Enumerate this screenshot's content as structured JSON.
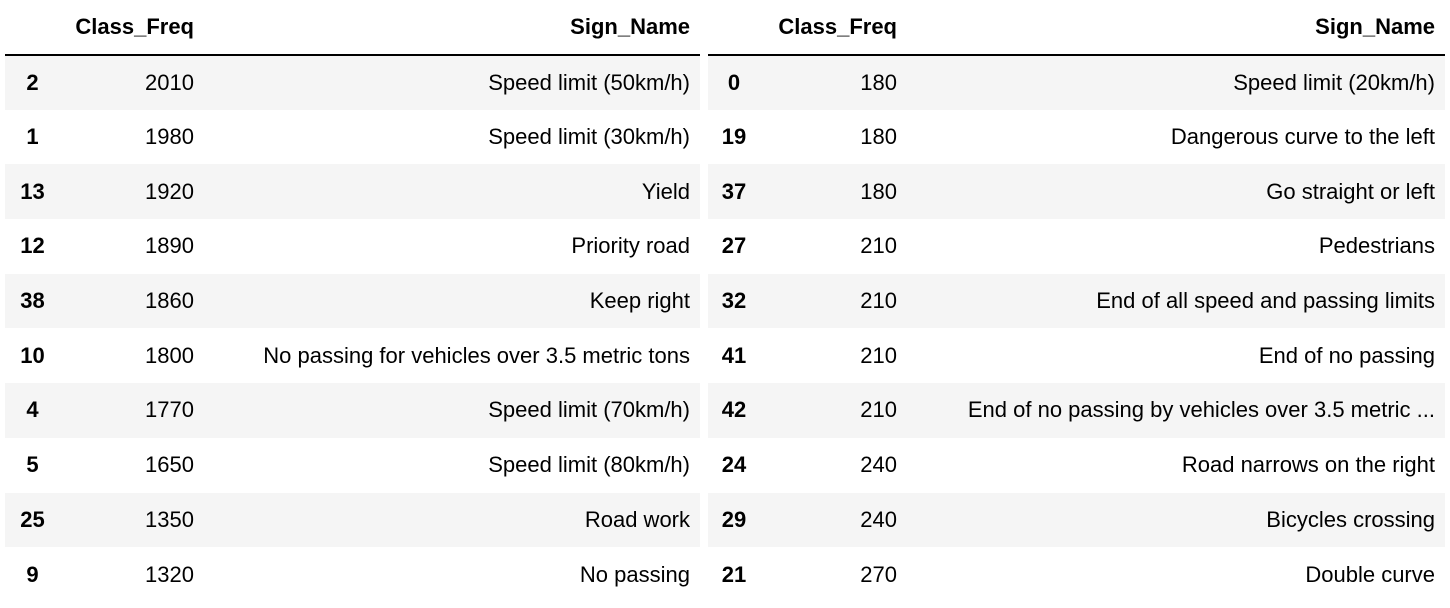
{
  "columns": {
    "index": "",
    "class_freq": "Class_Freq",
    "sign_name": "Sign_Name"
  },
  "left_table": {
    "rows": [
      {
        "index": "2",
        "class_freq": "2010",
        "sign_name": "Speed limit (50km/h)"
      },
      {
        "index": "1",
        "class_freq": "1980",
        "sign_name": "Speed limit (30km/h)"
      },
      {
        "index": "13",
        "class_freq": "1920",
        "sign_name": "Yield"
      },
      {
        "index": "12",
        "class_freq": "1890",
        "sign_name": "Priority road"
      },
      {
        "index": "38",
        "class_freq": "1860",
        "sign_name": "Keep right"
      },
      {
        "index": "10",
        "class_freq": "1800",
        "sign_name": "No passing for vehicles over 3.5 metric tons"
      },
      {
        "index": "4",
        "class_freq": "1770",
        "sign_name": "Speed limit (70km/h)"
      },
      {
        "index": "5",
        "class_freq": "1650",
        "sign_name": "Speed limit (80km/h)"
      },
      {
        "index": "25",
        "class_freq": "1350",
        "sign_name": "Road work"
      },
      {
        "index": "9",
        "class_freq": "1320",
        "sign_name": "No passing"
      }
    ]
  },
  "right_table": {
    "rows": [
      {
        "index": "0",
        "class_freq": "180",
        "sign_name": "Speed limit (20km/h)"
      },
      {
        "index": "19",
        "class_freq": "180",
        "sign_name": "Dangerous curve to the left"
      },
      {
        "index": "37",
        "class_freq": "180",
        "sign_name": "Go straight or left"
      },
      {
        "index": "27",
        "class_freq": "210",
        "sign_name": "Pedestrians"
      },
      {
        "index": "32",
        "class_freq": "210",
        "sign_name": "End of all speed and passing limits"
      },
      {
        "index": "41",
        "class_freq": "210",
        "sign_name": "End of no passing"
      },
      {
        "index": "42",
        "class_freq": "210",
        "sign_name": "End of no passing by vehicles over 3.5 metric ..."
      },
      {
        "index": "24",
        "class_freq": "240",
        "sign_name": "Road narrows on the right"
      },
      {
        "index": "29",
        "class_freq": "240",
        "sign_name": "Bicycles crossing"
      },
      {
        "index": "21",
        "class_freq": "270",
        "sign_name": "Double curve"
      }
    ]
  }
}
